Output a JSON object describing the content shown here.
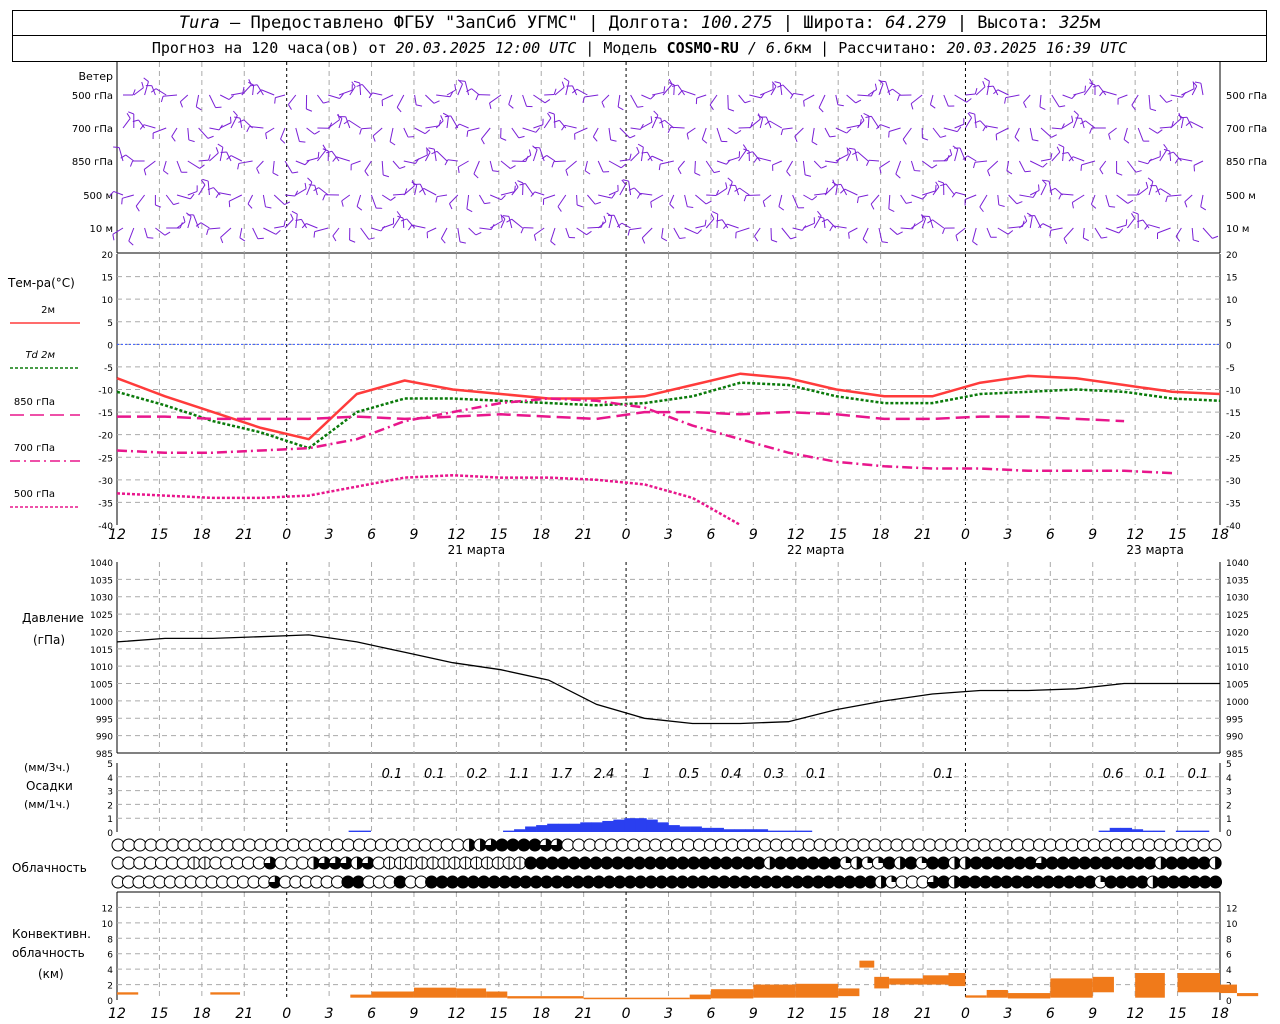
{
  "header": {
    "station": "Tura",
    "dash": " – ",
    "provider": "Предоставлено ФГБУ \"ЗапСиб УГМС\"",
    "lon_label": "Долгота:",
    "lon": "100.275",
    "lat_label": "Широта:",
    "lat": "64.279",
    "alt_label": "Высота:",
    "alt": "325",
    "alt_unit": "м",
    "forecast_label": "Прогноз на 120 часа(ов) от",
    "forecast_from": "20.03.2025 12:00 UTC",
    "model_label": "Модель",
    "model": "COSMO-RU",
    "resolution": "/ 6.6",
    "resolution_unit": "км",
    "computed_label": "Рассчитано:",
    "computed": "20.03.2025 16:39 UTC"
  },
  "chart_data": {
    "time_axis": {
      "hours_utc": [
        "12",
        "15",
        "18",
        "21",
        "0",
        "3",
        "6",
        "9",
        "12",
        "15",
        "18",
        "21",
        "0",
        "3",
        "6",
        "9",
        "12",
        "15",
        "18",
        "21",
        "0",
        "3",
        "6",
        "9",
        "12",
        "15",
        "18"
      ],
      "day_labels": [
        {
          "index": 8,
          "text": "21 марта"
        },
        {
          "index": 16,
          "text": "22 марта"
        },
        {
          "index": 24,
          "text": "23 марта"
        }
      ],
      "midnight_indices": [
        4,
        12,
        20
      ]
    },
    "wind": {
      "title": "Ветер",
      "levels": [
        "500 гПа",
        "700 гПа",
        "850 гПа",
        "500 м",
        "10 м"
      ],
      "color": "#7a1fd6"
    },
    "temperature": {
      "type": "line",
      "title": "Тем-ра(°C)",
      "ylim": [
        -40,
        20
      ],
      "yticks": [
        "20",
        "15",
        "10",
        "5",
        "0",
        "-5",
        "-10",
        "-15",
        "-20",
        "-25",
        "-30",
        "-35",
        "-40"
      ],
      "series": [
        {
          "name": "2м",
          "color": "#ff3b3b",
          "style": "solid",
          "values": [
            -7.5,
            -11.5,
            -15,
            -18.5,
            -21,
            -11,
            -8,
            -10,
            -11,
            -12,
            -12,
            -11.5,
            -9,
            -6.5,
            -7.5,
            -10,
            -11.5,
            -11.5,
            -8.5,
            -7,
            -7.5,
            -9,
            -10.5,
            -11
          ]
        },
        {
          "name": "Td 2м",
          "color": "#0a7a0a",
          "style": "dotted",
          "values": [
            -10.5,
            -13.5,
            -17,
            -19.5,
            -23,
            -15,
            -12,
            -12,
            -12.5,
            -13,
            -13.5,
            -13,
            -11.5,
            -8.5,
            -9,
            -11.5,
            -13,
            -13,
            -11,
            -10.5,
            -10,
            -10.5,
            -12,
            -12.5
          ]
        },
        {
          "name": "850 гПа",
          "color": "#e8168c",
          "style": "long-dash",
          "values": [
            -16,
            -16,
            -16.5,
            -16.5,
            -16.5,
            -16,
            -16.5,
            -16,
            -15.5,
            -16,
            -16.5,
            -15,
            -15,
            -15.5,
            -15,
            -15.5,
            -16.5,
            -16.5,
            -16,
            -16,
            -16.5,
            -17
          ]
        },
        {
          "name": "700 гПа",
          "color": "#e8168c",
          "style": "dash-dot",
          "values": [
            -23.5,
            -24,
            -24,
            -23.5,
            -23,
            -21,
            -17,
            -15,
            -13,
            -12,
            -12.5,
            -14,
            -18,
            -21,
            -24,
            -26,
            -27,
            -27.5,
            -27.5,
            -28,
            -28,
            -28,
            -28.5
          ]
        },
        {
          "name": "500 гПа",
          "color": "#e8168c",
          "style": "dotted",
          "values": [
            -33,
            -33.5,
            -34,
            -34,
            -33.5,
            -31.5,
            -29.5,
            -29,
            -29.5,
            -29.5,
            -30,
            -31,
            -34,
            -40
          ]
        }
      ]
    },
    "pressure": {
      "type": "line",
      "title": "Давление",
      "unit": "(гПа)",
      "ylim": [
        985,
        1040
      ],
      "yticks": [
        "1040",
        "1035",
        "1030",
        "1025",
        "1020",
        "1015",
        "1010",
        "1005",
        "1000",
        "995",
        "990",
        "985"
      ],
      "values": [
        1017,
        1018,
        1018,
        1018.5,
        1019,
        1017,
        1014,
        1011,
        1009,
        1006,
        999,
        995,
        993.5,
        993.5,
        994,
        997.5,
        1000,
        1002,
        1003,
        1003,
        1003.5,
        1005,
        1005,
        1005
      ]
    },
    "precipitation": {
      "type": "bar",
      "title": "Осадки",
      "unit_3h": "(мм/3ч.)",
      "unit_1h": "(мм/1ч.)",
      "ylim": [
        0,
        5
      ],
      "yticks": [
        "5",
        "4",
        "3",
        "2",
        "1",
        "0"
      ],
      "labels_3h": [
        {
          "index": 7,
          "text": "0.1"
        },
        {
          "index": 8,
          "text": "0.1"
        },
        {
          "index": 9,
          "text": "0.2"
        },
        {
          "index": 10,
          "text": "1.1"
        },
        {
          "index": 11,
          "text": "1.7"
        },
        {
          "index": 12,
          "text": "2.4"
        },
        {
          "index": 13,
          "text": "1"
        },
        {
          "index": 14,
          "text": "0.5"
        },
        {
          "index": 15,
          "text": "0.4"
        },
        {
          "index": 16,
          "text": "0.3"
        },
        {
          "index": 17,
          "text": "0.1"
        },
        {
          "index": 20,
          "text": "0.1"
        },
        {
          "index": 24,
          "text": "0.6"
        },
        {
          "index": 25,
          "text": "0.1"
        },
        {
          "index": 26,
          "text": "0.1"
        }
      ],
      "hourly_mm": [
        0,
        0,
        0,
        0,
        0,
        0,
        0,
        0,
        0,
        0,
        0,
        0,
        0,
        0,
        0,
        0,
        0,
        0,
        0,
        0,
        0,
        0.1,
        0.1,
        0,
        0,
        0,
        0,
        0,
        0,
        0,
        0,
        0,
        0,
        0,
        0,
        0.1,
        0.2,
        0.4,
        0.5,
        0.6,
        0.6,
        0.6,
        0.7,
        0.7,
        0.8,
        0.9,
        1,
        1,
        0.9,
        0.7,
        0.5,
        0.4,
        0.4,
        0.3,
        0.3,
        0.2,
        0.2,
        0.2,
        0.2,
        0.1,
        0.1,
        0.1,
        0.1,
        0,
        0,
        0,
        0,
        0,
        0,
        0,
        0,
        0,
        0,
        0,
        0,
        0,
        0,
        0,
        0,
        0,
        0,
        0,
        0,
        0,
        0,
        0,
        0,
        0,
        0,
        0.1,
        0.3,
        0.3,
        0.2,
        0.1,
        0.1,
        0,
        0.1,
        0.1,
        0.1,
        0
      ]
    },
    "cloudiness": {
      "title": "Облачность",
      "rows_fraction_per_3h": [
        [
          0,
          0,
          0,
          0,
          0,
          0,
          0,
          0,
          0,
          0,
          0,
          0,
          0,
          0,
          0,
          0,
          0,
          0,
          0,
          0,
          0,
          0,
          0,
          0,
          0,
          0,
          0,
          0,
          0,
          0,
          0,
          0,
          0.5,
          0.5,
          0.75,
          1,
          1,
          1,
          1,
          0.75,
          0.75,
          0,
          0,
          0,
          0,
          0,
          0,
          0,
          0,
          0,
          0,
          0,
          0,
          0,
          0,
          0,
          0,
          0,
          0,
          0,
          0,
          0,
          0,
          0,
          0,
          0,
          0,
          0,
          0,
          0,
          0,
          0,
          0,
          0,
          0,
          0,
          0,
          0,
          0,
          0,
          0,
          0,
          0,
          0,
          0,
          0,
          0,
          0,
          0,
          0,
          0,
          0,
          0,
          0,
          0,
          0,
          0,
          0,
          0,
          0,
          0
        ],
        [
          0,
          0,
          0,
          0,
          0,
          0,
          0,
          0.1,
          0.1,
          0,
          0,
          0,
          0,
          0,
          0.75,
          0,
          0,
          0,
          0.5,
          0.75,
          0.75,
          0.75,
          0.5,
          0.75,
          0,
          0.1,
          0.1,
          0.1,
          0.1,
          0.1,
          0.1,
          0.1,
          0.1,
          0.1,
          0.1,
          0.1,
          0.1,
          0.1,
          1,
          1,
          1,
          1,
          1,
          1,
          1,
          1,
          1,
          1,
          1,
          1,
          1,
          1,
          1,
          1,
          1,
          1,
          1,
          1,
          1,
          1,
          0.5,
          1,
          1,
          1,
          1,
          1,
          1,
          0.25,
          0.5,
          0.25,
          0.25,
          1,
          0.5,
          1,
          0.25,
          1,
          1,
          0.5,
          0.5,
          1,
          1,
          1,
          1,
          1,
          1,
          0.75,
          1,
          1,
          1,
          1,
          1,
          1,
          1,
          1,
          1,
          1,
          0.5,
          1,
          1,
          1,
          1,
          0.5
        ],
        [
          0,
          0,
          0,
          0,
          0,
          0,
          0,
          0,
          0,
          0,
          0,
          0,
          0,
          0,
          0,
          0.75,
          0,
          0,
          0,
          0,
          0,
          0,
          1,
          1,
          0,
          0,
          0,
          1,
          0,
          0,
          1,
          1,
          1,
          1,
          1,
          1,
          1,
          1,
          1,
          1,
          1,
          1,
          1,
          1,
          1,
          1,
          1,
          1,
          1,
          1,
          1,
          1,
          1,
          1,
          1,
          1,
          1,
          1,
          1,
          1,
          1,
          1,
          1,
          1,
          1,
          1,
          1,
          1,
          1,
          1,
          1,
          1,
          1,
          0.5,
          0.25,
          0,
          0,
          0,
          0.75,
          1,
          0.5,
          1,
          1,
          1,
          1,
          1,
          1,
          1,
          1,
          1,
          1,
          1,
          1,
          1,
          0.25,
          1,
          1,
          1,
          1,
          0.5,
          1,
          1,
          1,
          1,
          1,
          1
        ]
      ]
    },
    "convective": {
      "type": "bar",
      "title_line1": "Конвективн.",
      "title_line2": "облачность",
      "unit": "(км)",
      "ylim": [
        0,
        14
      ],
      "yticks": [
        "12",
        "10",
        "8",
        "6",
        "4",
        "2",
        "0"
      ],
      "color": "#f07a1a",
      "spans": [
        {
          "start": 0.0,
          "end": 0.5,
          "base": 0.7,
          "top": 1.0
        },
        {
          "start": 2.2,
          "end": 2.9,
          "base": 0.7,
          "top": 1.0
        },
        {
          "start": 5.5,
          "end": 6.0,
          "base": 0.3,
          "top": 0.7
        },
        {
          "start": 6.0,
          "end": 7.0,
          "base": 0.3,
          "top": 1.1
        },
        {
          "start": 7.0,
          "end": 8.0,
          "base": 0.3,
          "top": 1.6
        },
        {
          "start": 8.0,
          "end": 8.7,
          "base": 0.3,
          "top": 1.5
        },
        {
          "start": 8.7,
          "end": 9.2,
          "base": 0.3,
          "top": 1.1
        },
        {
          "start": 9.2,
          "end": 11.0,
          "base": 0.2,
          "top": 0.5
        },
        {
          "start": 11.0,
          "end": 13.5,
          "base": 0.1,
          "top": 0.3
        },
        {
          "start": 13.5,
          "end": 14.0,
          "base": 0.1,
          "top": 0.7
        },
        {
          "start": 14.0,
          "end": 15.0,
          "base": 0.2,
          "top": 1.4
        },
        {
          "start": 15.0,
          "end": 16.0,
          "base": 0.3,
          "top": 2.0
        },
        {
          "start": 16.0,
          "end": 17.0,
          "base": 0.3,
          "top": 2.1
        },
        {
          "start": 17.0,
          "end": 17.5,
          "base": 0.5,
          "top": 1.5
        },
        {
          "start": 17.5,
          "end": 17.85,
          "base": 4.2,
          "top": 5.1
        },
        {
          "start": 17.85,
          "end": 18.2,
          "base": 1.5,
          "top": 3.0
        },
        {
          "start": 18.2,
          "end": 19.0,
          "base": 2.0,
          "top": 2.8
        },
        {
          "start": 19.0,
          "end": 19.6,
          "base": 2.0,
          "top": 3.2
        },
        {
          "start": 19.6,
          "end": 20.0,
          "base": 1.8,
          "top": 3.5
        },
        {
          "start": 20.0,
          "end": 20.5,
          "base": 0.3,
          "top": 0.6
        },
        {
          "start": 20.5,
          "end": 21.0,
          "base": 0.3,
          "top": 1.3
        },
        {
          "start": 21.0,
          "end": 22.0,
          "base": 0.2,
          "top": 0.9
        },
        {
          "start": 22.0,
          "end": 23.0,
          "base": 0.3,
          "top": 2.8
        },
        {
          "start": 23.0,
          "end": 23.5,
          "base": 1.0,
          "top": 3.0
        },
        {
          "start": 24.0,
          "end": 24.7,
          "base": 0.3,
          "top": 3.5
        },
        {
          "start": 25.0,
          "end": 26.0,
          "base": 1.0,
          "top": 3.5
        },
        {
          "start": 26.0,
          "end": 26.4,
          "base": 0.9,
          "top": 2.0
        },
        {
          "start": 26.4,
          "end": 26.9,
          "base": 0.5,
          "top": 0.9
        }
      ]
    }
  }
}
